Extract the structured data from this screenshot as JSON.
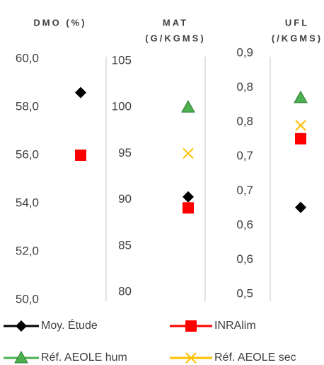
{
  "chart_data": [
    {
      "type": "scatter",
      "title": [
        "DMO (%)"
      ],
      "ylim": [
        50,
        60
      ],
      "yticks": [
        {
          "value": 50,
          "label": "50,0"
        },
        {
          "value": 52,
          "label": "52,0"
        },
        {
          "value": 54,
          "label": "54,0"
        },
        {
          "value": 56,
          "label": "56,0"
        },
        {
          "value": 58,
          "label": "58,0"
        },
        {
          "value": 60,
          "label": "60,0"
        }
      ],
      "series": [
        {
          "name": "Moy. Étude",
          "color": "#000000",
          "marker": "diamond",
          "values": [
            58.6
          ]
        },
        {
          "name": "INRAlim",
          "color": "#ff0000",
          "marker": "square",
          "values": [
            56.0
          ]
        }
      ]
    },
    {
      "type": "scatter",
      "title": [
        "MAT",
        "(G/KGMS)"
      ],
      "ylim": [
        80,
        105
      ],
      "yticks": [
        80,
        85,
        90,
        95,
        100,
        105
      ],
      "series": [
        {
          "name": "Moy. Étude",
          "color": "#000000",
          "marker": "diamond",
          "values": [
            90.3
          ]
        },
        {
          "name": "INRAlim",
          "color": "#ff0000",
          "marker": "square",
          "values": [
            89.1
          ]
        },
        {
          "name": "Réf. AEOLE hum",
          "color": "#4caf50",
          "marker": "triangle",
          "values": [
            100.0
          ]
        },
        {
          "name": "Réf. AEOLE sec",
          "color": "#ffc000",
          "marker": "cross",
          "values": [
            95.0
          ]
        }
      ]
    },
    {
      "type": "scatter",
      "title": [
        "UFL",
        "(/KGMS)"
      ],
      "ylim": [
        0.5,
        0.9
      ],
      "yticks": [
        {
          "value": 0.5,
          "label": "0,5"
        },
        {
          "value": 0.557,
          "label": "0,6"
        },
        {
          "value": 0.614,
          "label": "0,6"
        },
        {
          "value": 0.671,
          "label": "0,7"
        },
        {
          "value": 0.729,
          "label": "0,7"
        },
        {
          "value": 0.786,
          "label": "0,8"
        },
        {
          "value": 0.843,
          "label": "0,8"
        },
        {
          "value": 0.9,
          "label": "0,9"
        }
      ],
      "series": [
        {
          "name": "Moy. Étude",
          "color": "#000000",
          "marker": "diamond",
          "values": [
            0.644
          ]
        },
        {
          "name": "INRAlim",
          "color": "#ff0000",
          "marker": "square",
          "values": [
            0.758
          ]
        },
        {
          "name": "Réf. AEOLE hum",
          "color": "#4caf50",
          "marker": "triangle",
          "values": [
            0.826
          ]
        },
        {
          "name": "Réf. AEOLE sec",
          "color": "#ffc000",
          "marker": "cross",
          "values": [
            0.78
          ]
        }
      ]
    }
  ]
}
